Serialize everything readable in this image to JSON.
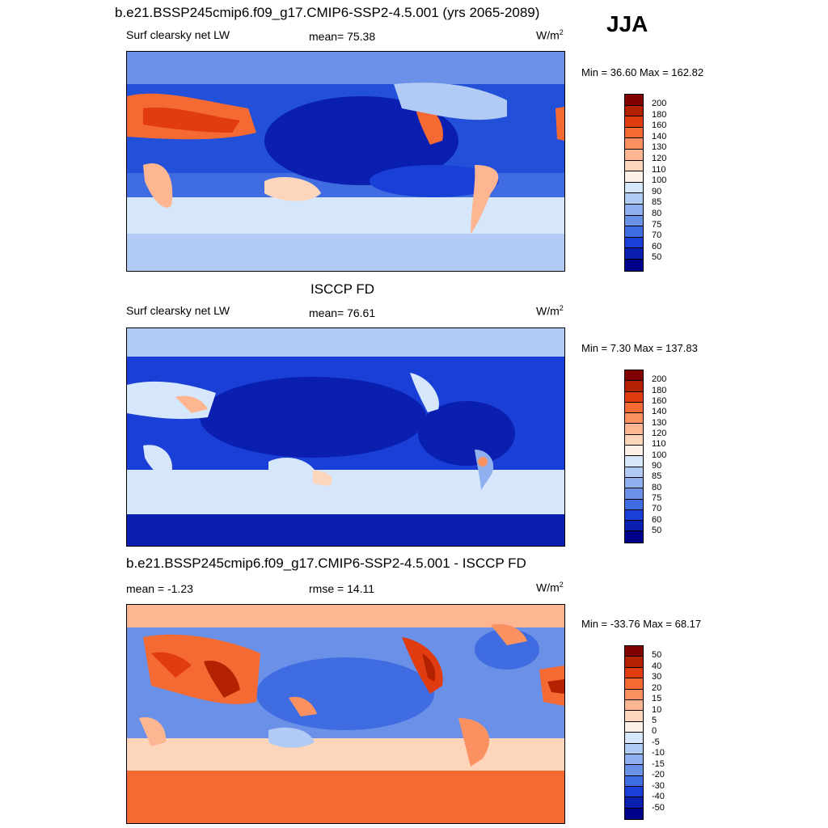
{
  "season": "JJA",
  "panels": [
    {
      "title": "b.e21.BSSP245cmip6.f09_g17.CMIP6-SSP2-4.5.001 (yrs 2065-2089)",
      "left_label": "Surf clearsky net LW",
      "center_label": "mean=  75.38",
      "unit_base": "W/m",
      "unit_sup": "2",
      "minmax": "Min =  36.60 Max = 162.82",
      "colorbar": {
        "labels": [
          "200",
          "180",
          "160",
          "140",
          "130",
          "120",
          "110",
          "100",
          "90",
          "85",
          "80",
          "75",
          "70",
          "60",
          "50"
        ],
        "colors": [
          "#800000",
          "#b22200",
          "#e03c10",
          "#f56a33",
          "#fb9161",
          "#fdb592",
          "#fdd5bb",
          "#fef0e4",
          "#d6e6fb",
          "#b2cbf4",
          "#8fb0ee",
          "#6a90e8",
          "#3f6ce0",
          "#1a3fd6",
          "#0a1fb0",
          "#00008b"
        ]
      }
    },
    {
      "title": "ISCCP FD",
      "left_label": "Surf clearsky net LW",
      "center_label": "mean=  76.61",
      "unit_base": "W/m",
      "unit_sup": "2",
      "minmax": "Min =   7.30 Max = 137.83",
      "colorbar": {
        "labels": [
          "200",
          "180",
          "160",
          "140",
          "130",
          "120",
          "110",
          "100",
          "90",
          "85",
          "80",
          "75",
          "70",
          "60",
          "50"
        ],
        "colors": [
          "#800000",
          "#b22200",
          "#e03c10",
          "#f56a33",
          "#fb9161",
          "#fdb592",
          "#fdd5bb",
          "#fef0e4",
          "#d6e6fb",
          "#b2cbf4",
          "#8fb0ee",
          "#6a90e8",
          "#3f6ce0",
          "#1a3fd6",
          "#0a1fb0",
          "#00008b"
        ]
      }
    },
    {
      "title": "b.e21.BSSP245cmip6.f09_g17.CMIP6-SSP2-4.5.001 - ISCCP FD",
      "left_label": "mean =  -1.23",
      "center_label": "rmse =  14.11",
      "unit_base": "W/m",
      "unit_sup": "2",
      "minmax": "Min = -33.76 Max =  68.17",
      "colorbar": {
        "labels": [
          "50",
          "40",
          "30",
          "20",
          "15",
          "10",
          "5",
          "0",
          "-5",
          "-10",
          "-15",
          "-20",
          "-30",
          "-40",
          "-50"
        ],
        "colors": [
          "#800000",
          "#b22200",
          "#e03c10",
          "#f56a33",
          "#fb9161",
          "#fdb592",
          "#fdd5bb",
          "#fef0e4",
          "#d6e6fb",
          "#b2cbf4",
          "#8fb0ee",
          "#6a90e8",
          "#3f6ce0",
          "#1a3fd6",
          "#0a1fb0",
          "#00008b"
        ]
      }
    }
  ]
}
